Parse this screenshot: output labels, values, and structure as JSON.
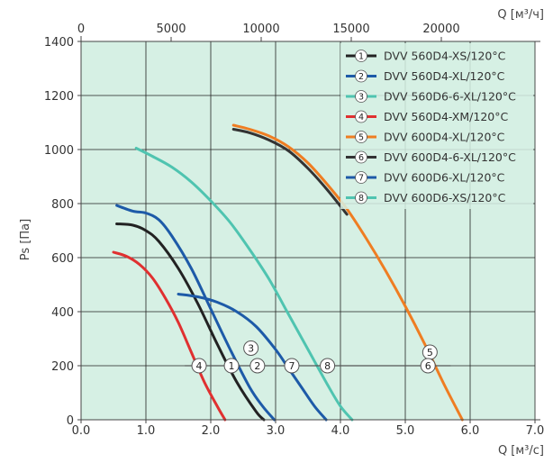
{
  "chart_data": {
    "type": "line",
    "title": "",
    "xlabel": "Q [м³/с]",
    "x2label": "Q [м³/ч]",
    "ylabel": "Ps [Па]",
    "xlim": [
      0,
      7
    ],
    "ylim": [
      0,
      1400
    ],
    "x2lim": [
      0,
      25200
    ],
    "x_ticks": [
      "0.0",
      "1.0",
      "2.0",
      "3.0",
      "4.0",
      "5.0",
      "6.0",
      "7.0"
    ],
    "x_tick_values": [
      0,
      1,
      2,
      3,
      4,
      5,
      6,
      7
    ],
    "x2_ticks": [
      "0",
      "5000",
      "10000",
      "15000",
      "20000"
    ],
    "x2_tick_values": [
      0,
      5000,
      10000,
      15000,
      20000
    ],
    "y_ticks": [
      "0",
      "200",
      "400",
      "600",
      "800",
      "1000",
      "1200",
      "1400"
    ],
    "y_tick_values": [
      0,
      200,
      400,
      600,
      800,
      1000,
      1200,
      1400
    ],
    "grid": true,
    "background": "#d6f0e4",
    "legend_position": "top-right",
    "series": [
      {
        "id": "1",
        "name": "DVV 560D4-XS/120°C",
        "color": "#222222",
        "x": [
          0.55,
          0.8,
          1.0,
          1.2,
          1.5,
          1.8,
          2.1,
          2.4,
          2.7,
          2.82
        ],
        "y": [
          725,
          720,
          700,
          660,
          560,
          430,
          280,
          140,
          30,
          0
        ],
        "marker": {
          "label": "1",
          "x": 2.32,
          "y": 200
        }
      },
      {
        "id": "2",
        "name": "DVV 560D4-XL/120°C",
        "color": "#1d5aa8",
        "x": [
          0.55,
          0.8,
          1.0,
          1.2,
          1.4,
          1.7,
          2.0,
          2.3,
          2.6,
          2.8,
          2.98
        ],
        "y": [
          793,
          772,
          765,
          740,
          680,
          560,
          410,
          260,
          120,
          50,
          0
        ],
        "marker": {
          "label": "2",
          "x": 2.72,
          "y": 200
        }
      },
      {
        "id": "3",
        "name": "DVV 560D6-6-XL/120°C",
        "color": "#4fc4b0",
        "x": [
          0.85,
          1.1,
          1.4,
          1.7,
          2.0,
          2.3,
          2.6,
          2.9,
          3.2,
          3.5,
          3.8,
          4.0,
          4.18
        ],
        "y": [
          1005,
          975,
          935,
          880,
          810,
          730,
          630,
          520,
          390,
          260,
          130,
          50,
          0
        ],
        "marker": {
          "label": "3",
          "x": 2.62,
          "y": 265
        }
      },
      {
        "id": "4",
        "name": "DVV 560D4-XM/120°C",
        "color": "#e03030",
        "x": [
          0.5,
          0.7,
          0.9,
          1.1,
          1.3,
          1.5,
          1.7,
          1.9,
          2.1,
          2.22
        ],
        "y": [
          620,
          605,
          575,
          525,
          450,
          360,
          250,
          140,
          50,
          0
        ],
        "marker": {
          "label": "4",
          "x": 1.82,
          "y": 200
        }
      },
      {
        "id": "5",
        "name": "DVV 600D4-XL/120°C",
        "color": "#ef7d22",
        "x": [
          2.35,
          2.6,
          2.9,
          3.2,
          3.5,
          3.8,
          4.1,
          4.4,
          4.7,
          5.0,
          5.3,
          5.6,
          5.88
        ],
        "y": [
          1090,
          1075,
          1050,
          1010,
          950,
          870,
          780,
          670,
          550,
          420,
          280,
          130,
          0
        ],
        "marker": {
          "label": "5",
          "x": 5.38,
          "y": 250
        }
      },
      {
        "id": "6",
        "name": "DVV 600D4-6-XL/120°C",
        "color": "#333333",
        "x": [
          2.35,
          2.6,
          2.9,
          3.2,
          3.5,
          3.8,
          4.1
        ],
        "y": [
          1075,
          1062,
          1035,
          995,
          930,
          850,
          760
        ],
        "marker": {
          "label": "6",
          "x": 5.35,
          "y": 200
        }
      },
      {
        "id": "7",
        "name": "DVV 600D6-XL/120°C",
        "color": "#1d5aa8",
        "x": [
          1.5,
          1.8,
          2.1,
          2.4,
          2.7,
          3.0,
          3.2,
          3.4,
          3.6,
          3.78
        ],
        "y": [
          465,
          455,
          435,
          400,
          345,
          260,
          190,
          120,
          50,
          0
        ],
        "marker": {
          "label": "7",
          "x": 3.25,
          "y": 200
        }
      },
      {
        "id": "8",
        "name": "DVV 600D6-XS/120°C",
        "color": "#4fc4b0",
        "x": [],
        "y": [],
        "marker": {
          "label": "8",
          "x": 3.8,
          "y": 200
        }
      }
    ],
    "guide_line": {
      "y": 200,
      "x_from": 1.6,
      "x_to": 5.7
    }
  }
}
